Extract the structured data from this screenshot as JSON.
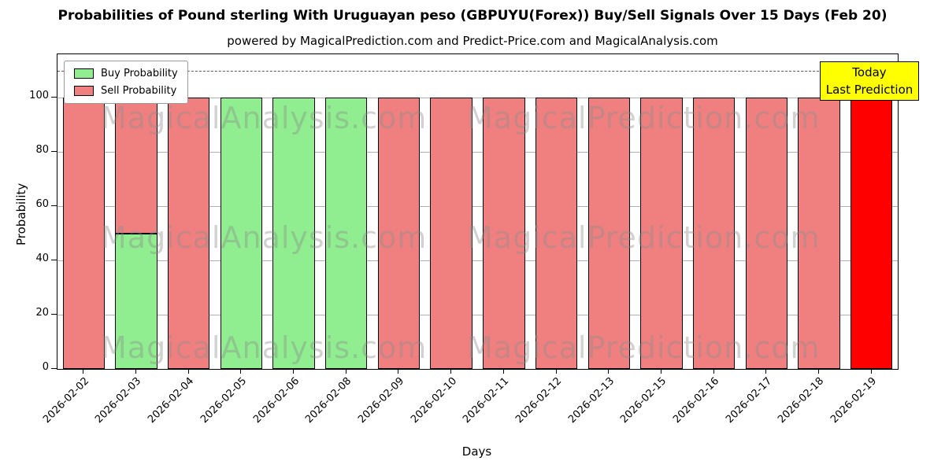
{
  "chart_data": {
    "type": "bar",
    "stacked": true,
    "title": "Probabilities of Pound sterling With Uruguayan peso (GBPUYU(Forex)) Buy/Sell Signals Over 15 Days (Feb 20)",
    "subtitle": "powered by MagicalPrediction.com and Predict-Price.com and MagicalAnalysis.com",
    "xlabel": "Days",
    "ylabel": "Probability",
    "ylim": [
      0,
      116
    ],
    "yticks": [
      0,
      20,
      40,
      60,
      80,
      100
    ],
    "grid": true,
    "dashed_line_y": 110,
    "categories": [
      "2026-02-02",
      "2026-02-03",
      "2026-02-04",
      "2026-02-05",
      "2026-02-06",
      "2026-02-08",
      "2026-02-09",
      "2026-02-10",
      "2026-02-11",
      "2026-02-12",
      "2026-02-13",
      "2026-02-15",
      "2026-02-16",
      "2026-02-17",
      "2026-02-18",
      "2026-02-19"
    ],
    "series": [
      {
        "name": "Buy Probability",
        "color": "#90EE90",
        "values": [
          0,
          50,
          0,
          100,
          100,
          100,
          0,
          0,
          0,
          0,
          0,
          0,
          0,
          0,
          0,
          0
        ]
      },
      {
        "name": "Sell Probability",
        "color": "#F08080",
        "values": [
          100,
          50,
          100,
          0,
          0,
          0,
          100,
          100,
          100,
          100,
          100,
          100,
          100,
          100,
          100,
          0
        ]
      },
      {
        "name": "Last Prediction",
        "color": "#FF0000",
        "values": [
          0,
          0,
          0,
          0,
          0,
          0,
          0,
          0,
          0,
          0,
          0,
          0,
          0,
          0,
          0,
          100
        ]
      }
    ],
    "legend": {
      "position": "top-left",
      "entries": [
        {
          "label": "Buy Probability",
          "color": "#90EE90"
        },
        {
          "label": "Sell Probability",
          "color": "#F08080"
        }
      ]
    },
    "annotation_box": {
      "lines": [
        "Today",
        "Last Prediction"
      ],
      "bg": "#ffff00"
    },
    "watermarks": [
      "MagicalAnalysis.com",
      "MagicalPrediction.com"
    ]
  }
}
